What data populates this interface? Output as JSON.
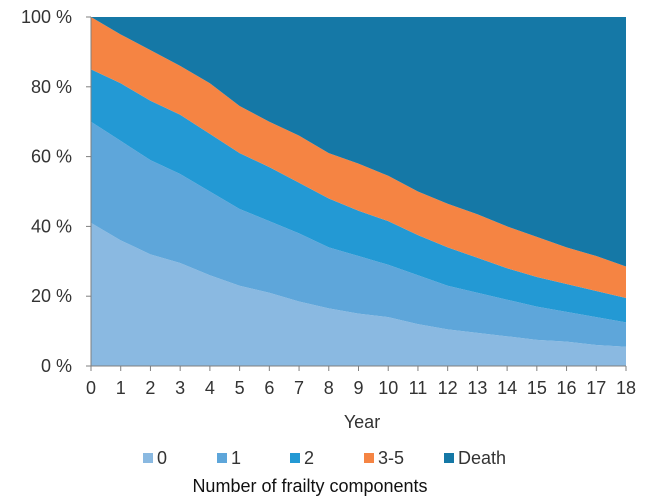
{
  "chart_data": {
    "type": "area",
    "stacked": true,
    "percent": true,
    "x": [
      0,
      1,
      2,
      3,
      4,
      5,
      6,
      7,
      8,
      9,
      10,
      11,
      12,
      13,
      14,
      15,
      16,
      17,
      18
    ],
    "xlabel": "Year",
    "ylim": [
      0,
      100
    ],
    "yticks": [
      0,
      20,
      40,
      60,
      80,
      100
    ],
    "ytick_labels": [
      "0 %",
      "20 %",
      "40 %",
      "60 %",
      "80 %",
      "100 %"
    ],
    "legend_title": "Number of frailty components",
    "legend_position": "bottom",
    "series": [
      {
        "name": "0",
        "color": "#8ab9e1",
        "values": [
          41,
          36,
          32,
          29.5,
          26,
          23,
          21,
          18.5,
          16.5,
          15,
          14,
          12,
          10.5,
          9.5,
          8.5,
          7.5,
          7,
          6,
          5.5
        ]
      },
      {
        "name": "1",
        "color": "#5ea6da",
        "values": [
          29,
          28.5,
          27,
          25.5,
          24,
          22,
          20.5,
          19.5,
          17.5,
          16.5,
          15,
          14,
          12.5,
          11.5,
          10.5,
          9.5,
          8.5,
          8,
          7
        ]
      },
      {
        "name": "2",
        "color": "#2399d4",
        "values": [
          15,
          16.5,
          17,
          17,
          16.5,
          16,
          15.5,
          14.5,
          14,
          13,
          12.5,
          11.5,
          11,
          10,
          9,
          8.5,
          8,
          7.5,
          7
        ]
      },
      {
        "name": "3-5",
        "color": "#f58443",
        "values": [
          15,
          14,
          14.5,
          14,
          14.5,
          13.5,
          13,
          13.5,
          13,
          13.5,
          13,
          12.5,
          12.5,
          12.5,
          12,
          11.5,
          10.5,
          10,
          9
        ]
      },
      {
        "name": "Death",
        "color": "#1578a6",
        "values": [
          0,
          5,
          9.5,
          14,
          19,
          25.5,
          30,
          34,
          39,
          42,
          45.5,
          50,
          53.5,
          56.5,
          60,
          63,
          66,
          68.5,
          71.5
        ]
      }
    ]
  }
}
